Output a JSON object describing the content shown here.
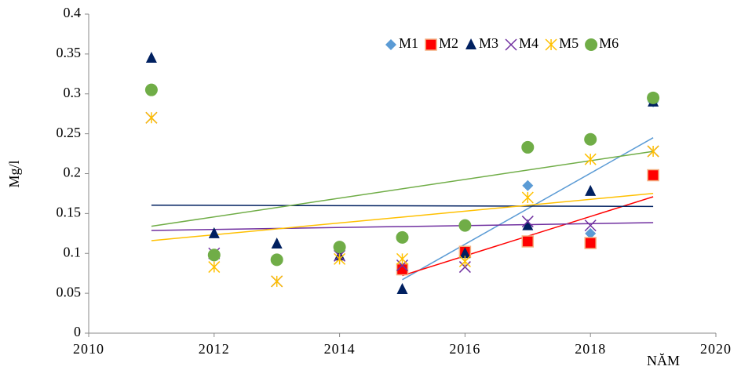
{
  "chart_data": {
    "type": "scatter",
    "y_label": "Mg/l",
    "x_label": "NĂM",
    "x": [
      2011,
      2012,
      2013,
      2014,
      2015,
      2016,
      2017,
      2018,
      2019
    ],
    "xlim": [
      2010,
      2020
    ],
    "xticks": [
      2010,
      2012,
      2014,
      2016,
      2018,
      2020
    ],
    "ylim": [
      0,
      0.4
    ],
    "yticks": [
      0,
      0.05,
      0.1,
      0.15,
      0.2,
      0.25,
      0.3,
      0.35,
      0.4
    ],
    "trendline": "linear",
    "legend": "top-right",
    "series": [
      {
        "name": "M1",
        "color": "#5b9bd5",
        "marker": "diamond",
        "values": [
          null,
          null,
          null,
          null,
          0.08,
          0.1,
          0.185,
          0.125,
          0.29
        ]
      },
      {
        "name": "M2",
        "color": "#ff0000",
        "marker": "square",
        "values": [
          null,
          null,
          null,
          null,
          0.08,
          0.102,
          0.115,
          0.113,
          0.198
        ]
      },
      {
        "name": "M3",
        "color": "#002060",
        "marker": "triangle",
        "values": [
          0.345,
          0.125,
          0.112,
          0.097,
          0.055,
          0.1,
          0.135,
          0.178,
          0.29
        ]
      },
      {
        "name": "M4",
        "color": "#7030a0",
        "marker": "x",
        "values": [
          0.27,
          0.1,
          0.065,
          0.097,
          0.085,
          0.083,
          0.14,
          0.135,
          0.228
        ]
      },
      {
        "name": "M5",
        "color": "#ffc000",
        "marker": "star",
        "values": [
          0.27,
          0.083,
          0.065,
          0.093,
          0.093,
          0.09,
          0.17,
          0.218,
          0.228
        ]
      },
      {
        "name": "M6",
        "color": "#70ad47",
        "marker": "circle",
        "values": [
          0.305,
          0.098,
          0.092,
          0.108,
          0.12,
          0.135,
          0.233,
          0.243,
          0.295
        ]
      }
    ]
  }
}
